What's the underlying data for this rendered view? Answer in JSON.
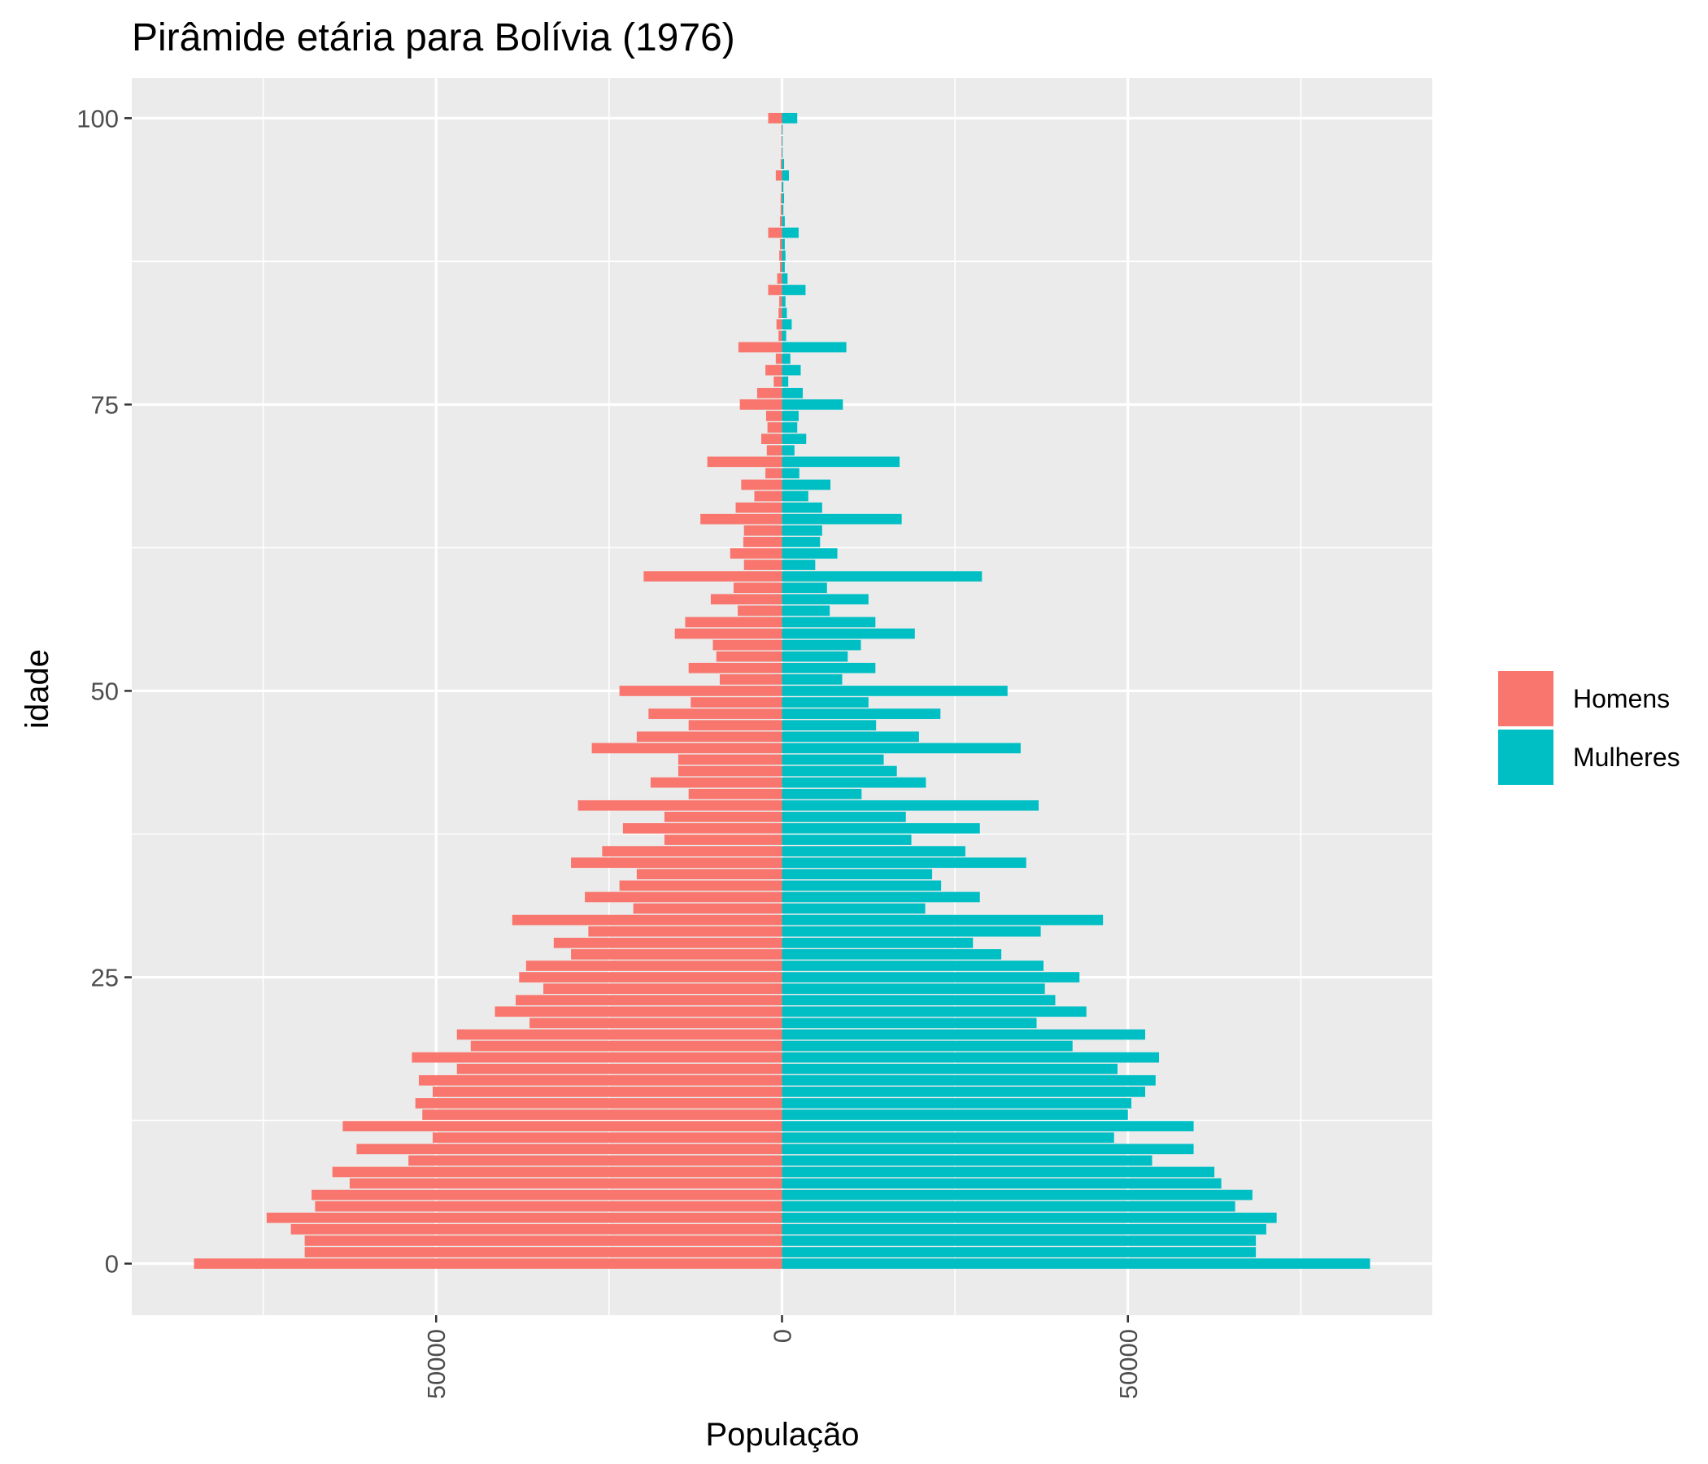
{
  "chart_data": {
    "type": "bar",
    "orientation": "horizontal",
    "title": "Pirâmide etária para Bolívia (1976)",
    "xlabel": "População",
    "ylabel": "idade",
    "xlim": [
      -94000,
      94000
    ],
    "ylim": [
      -4.5,
      103.5
    ],
    "x_ticks": [
      -50000,
      0,
      50000
    ],
    "x_tick_labels": [
      "50000",
      "0",
      "50000"
    ],
    "y_ticks": [
      0,
      25,
      50,
      75,
      100
    ],
    "y_tick_labels": [
      "0",
      "25",
      "50",
      "75",
      "100"
    ],
    "grid": true,
    "legend_position": "right",
    "colors": {
      "panel": "#ebebeb",
      "grid": "#ffffff",
      "homens": "#f8766d",
      "mulheres": "#00bfc4"
    },
    "ages": [
      0,
      1,
      2,
      3,
      4,
      5,
      6,
      7,
      8,
      9,
      10,
      11,
      12,
      13,
      14,
      15,
      16,
      17,
      18,
      19,
      20,
      21,
      22,
      23,
      24,
      25,
      26,
      27,
      28,
      29,
      30,
      31,
      32,
      33,
      34,
      35,
      36,
      37,
      38,
      39,
      40,
      41,
      42,
      43,
      44,
      45,
      46,
      47,
      48,
      49,
      50,
      51,
      52,
      53,
      54,
      55,
      56,
      57,
      58,
      59,
      60,
      61,
      62,
      63,
      64,
      65,
      66,
      67,
      68,
      69,
      70,
      71,
      72,
      73,
      74,
      75,
      76,
      77,
      78,
      79,
      80,
      81,
      82,
      83,
      84,
      85,
      86,
      87,
      88,
      89,
      90,
      91,
      92,
      93,
      94,
      95,
      96,
      97,
      98,
      99,
      100
    ],
    "series": [
      {
        "name": "Homens",
        "values": [
          -85000,
          -69000,
          -69000,
          -71000,
          -74500,
          -67500,
          -68000,
          -62500,
          -65000,
          -54000,
          -61500,
          -50500,
          -63500,
          -52000,
          -53000,
          -50500,
          -52500,
          -47000,
          -53500,
          -45000,
          -47000,
          -36500,
          -41500,
          -38500,
          -34500,
          -38000,
          -37000,
          -30500,
          -33000,
          -28000,
          -39000,
          -21500,
          -28500,
          -23500,
          -21000,
          -30500,
          -26000,
          -17000,
          -23000,
          -17000,
          -29500,
          -13500,
          -19000,
          -15000,
          -15000,
          -27500,
          -21000,
          -13500,
          -19300,
          -13200,
          -23500,
          -9000,
          -13500,
          -9500,
          -10000,
          -15500,
          -14000,
          -6400,
          -10300,
          -7000,
          -20000,
          -5500,
          -7500,
          -5600,
          -5500,
          -11800,
          -6700,
          -4000,
          -5900,
          -2400,
          -10800,
          -2200,
          -3000,
          -2100,
          -2300,
          -6100,
          -3600,
          -1200,
          -2400,
          -900,
          -6300,
          -500,
          -800,
          -500,
          -400,
          -2000,
          -700,
          -300,
          -400,
          -300,
          -2000,
          -300,
          -200,
          -200,
          -100,
          -900,
          -200,
          -100,
          -100,
          -100,
          -2000
        ],
        "color": "#f8766d"
      },
      {
        "name": "Mulheres",
        "values": [
          85000,
          68500,
          68500,
          70000,
          71500,
          65500,
          68000,
          63500,
          62500,
          53500,
          59500,
          48000,
          59500,
          50000,
          50500,
          52500,
          54000,
          48500,
          54500,
          42000,
          52500,
          36800,
          44000,
          39500,
          38000,
          43000,
          37800,
          31700,
          27600,
          37400,
          46400,
          20700,
          28600,
          23000,
          21700,
          35300,
          26500,
          18700,
          28600,
          17900,
          37100,
          11500,
          20800,
          16600,
          14700,
          34500,
          19800,
          13600,
          22900,
          12500,
          32600,
          8700,
          13500,
          9500,
          11400,
          19200,
          13500,
          6900,
          12500,
          6500,
          28900,
          4800,
          8000,
          5500,
          5800,
          17300,
          5800,
          3800,
          7000,
          2500,
          17000,
          1800,
          3500,
          2200,
          2400,
          8800,
          3000,
          900,
          2700,
          1200,
          9300,
          600,
          1400,
          700,
          500,
          3400,
          800,
          400,
          500,
          400,
          2400,
          400,
          200,
          300,
          200,
          1000,
          300,
          100,
          100,
          100,
          2200
        ],
        "color": "#00bfc4"
      }
    ]
  }
}
